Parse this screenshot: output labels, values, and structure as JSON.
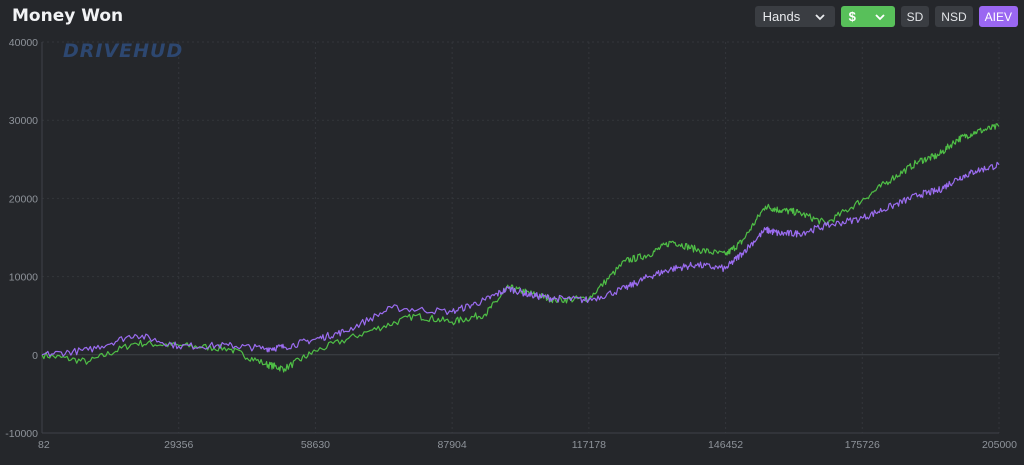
{
  "header": {
    "title": "Money Won",
    "x_axis_select": "Hands",
    "unit_select": "$",
    "buttons": {
      "sd": "SD",
      "nsd": "NSD",
      "aiev": "AIEV"
    }
  },
  "watermark": "DRIVEHUD",
  "colors": {
    "background": "#25272b",
    "grid": "#33363b",
    "axis_text": "#8e939a",
    "won_line": "#4fbf46",
    "aiev_line": "#9b6cf0",
    "unit_select_bg": "#58c05a",
    "aiev_button_bg": "#9a67f2"
  },
  "chart_data": {
    "type": "line",
    "xlabel": "",
    "ylabel": "",
    "xlim": [
      82,
      205000
    ],
    "ylim": [
      -10000,
      40000
    ],
    "x_ticks": [
      "82",
      "29356",
      "58630",
      "87904",
      "117178",
      "146452",
      "175726",
      "205000"
    ],
    "y_ticks": [
      "40000",
      "30000",
      "20000",
      "10000",
      "0",
      "-10000"
    ],
    "series": [
      {
        "color": "#4fbf46",
        "x": [
          82,
          10000,
          20000,
          29356,
          40000,
          48000,
          52000,
          58630,
          70000,
          80000,
          87904,
          95000,
          100000,
          105000,
          110000,
          117178,
          125000,
          130000,
          135000,
          140000,
          146452,
          150000,
          155000,
          158000,
          162000,
          168000,
          175726,
          182000,
          188000,
          192000,
          196000,
          200000,
          205000
        ],
        "y": [
          0,
          -900,
          1500,
          1200,
          800,
          -1200,
          -1800,
          500,
          3000,
          5000,
          4200,
          5200,
          8600,
          7800,
          7000,
          7200,
          12000,
          12800,
          14500,
          13500,
          12800,
          14500,
          19000,
          18500,
          18200,
          16800,
          19800,
          22500,
          24800,
          25500,
          27500,
          28500,
          29200
        ]
      },
      {
        "color": "#9b6cf0",
        "x": [
          82,
          10000,
          20000,
          29356,
          40000,
          48000,
          52000,
          58630,
          65000,
          75000,
          87904,
          95000,
          100000,
          105000,
          110000,
          117178,
          125000,
          130000,
          135000,
          140000,
          146452,
          150000,
          155000,
          158000,
          162000,
          168000,
          175726,
          182000,
          188000,
          192000,
          196000,
          200000,
          205000
        ],
        "y": [
          0,
          600,
          2600,
          1100,
          1200,
          800,
          1000,
          2000,
          3000,
          6000,
          5500,
          7000,
          8500,
          7600,
          7200,
          7000,
          8500,
          10000,
          11000,
          11500,
          11000,
          13000,
          16000,
          15500,
          15500,
          16500,
          17500,
          19000,
          20500,
          21000,
          22500,
          23500,
          24300
        ]
      }
    ]
  }
}
